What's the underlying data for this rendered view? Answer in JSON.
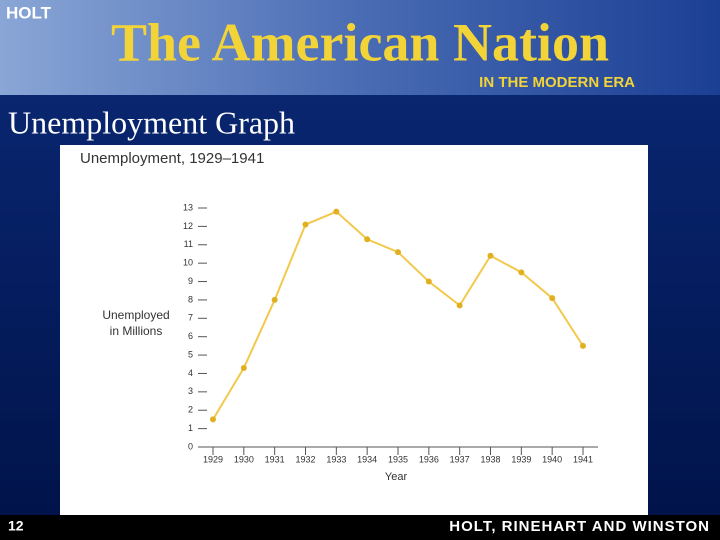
{
  "header": {
    "brand": "HOLT",
    "title": "The American Nation",
    "subtitle": "IN THE MODERN ERA"
  },
  "slide_title": "Unemployment Graph",
  "chart_data": {
    "type": "line",
    "title": "Unemployment, 1929–1941",
    "xlabel": "Year",
    "ylabel": [
      "Unemployed",
      "in Millions"
    ],
    "categories": [
      "1929",
      "1930",
      "1931",
      "1932",
      "1933",
      "1934",
      "1935",
      "1936",
      "1937",
      "1938",
      "1939",
      "1940",
      "1941"
    ],
    "series": [
      {
        "color": "#f2c94c",
        "values": [
          1.5,
          4.3,
          8.0,
          12.1,
          12.8,
          11.3,
          10.6,
          9.0,
          7.7,
          10.4,
          9.5,
          8.1,
          5.5
        ]
      }
    ],
    "ylim": [
      0,
      13
    ],
    "yticks": [
      0,
      1,
      2,
      3,
      4,
      5,
      6,
      7,
      8,
      9,
      10,
      11,
      12,
      13
    ]
  },
  "footer": {
    "page": "12",
    "publisher": "HOLT, RINEHART AND WINSTON"
  }
}
